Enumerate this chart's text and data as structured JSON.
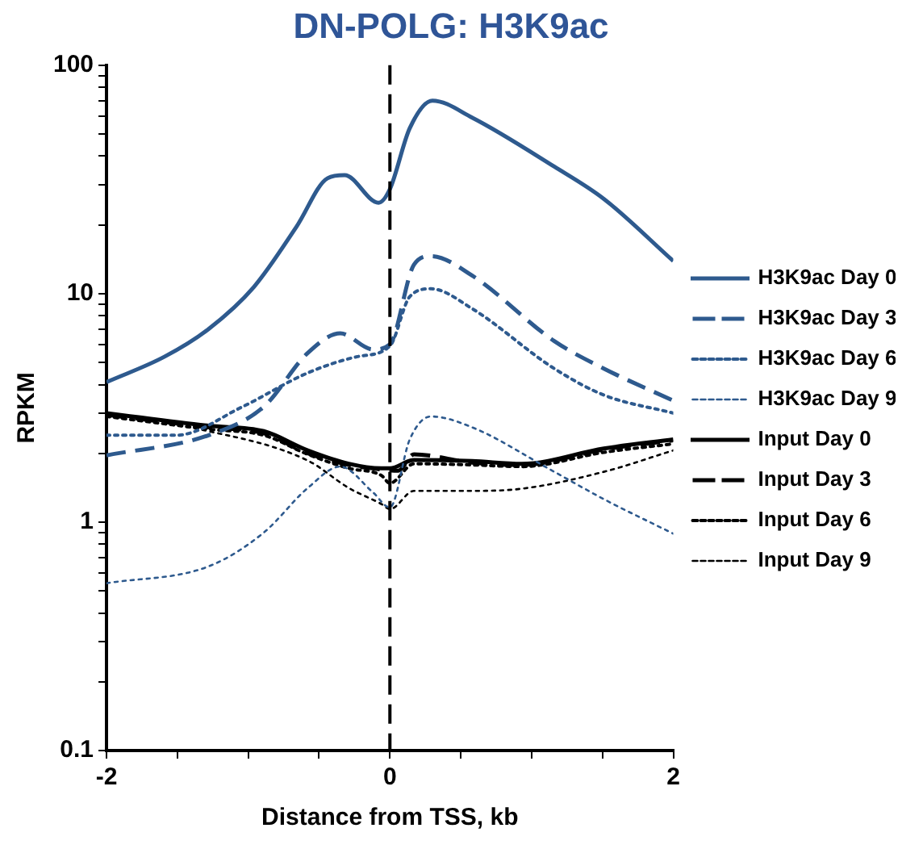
{
  "chart_data": {
    "type": "line",
    "title": "DN-POLG: H3K9ac",
    "xlabel": "Distance from TSS, kb",
    "ylabel": "RPKM",
    "log": "y",
    "grid": false,
    "legend": "right",
    "marker": "none",
    "xlim": [
      -2,
      2
    ],
    "xticks": [
      -2,
      {
        "value": -1.5,
        "label": null
      },
      {
        "value": -1,
        "label": null
      },
      {
        "value": -0.5,
        "label": null
      },
      0,
      {
        "value": 0.5,
        "label": null
      },
      {
        "value": 1,
        "label": null
      },
      {
        "value": 1.5,
        "label": null
      },
      2
    ],
    "ylim": [
      0.1,
      100
    ],
    "yticks": [
      0.1,
      {
        "value": 0.2,
        "label": null
      },
      {
        "value": 0.3,
        "label": null
      },
      {
        "value": 0.4,
        "label": null
      },
      {
        "value": 0.5,
        "label": null
      },
      {
        "value": 0.6,
        "label": null
      },
      {
        "value": 0.7,
        "label": null
      },
      {
        "value": 0.8,
        "label": null
      },
      {
        "value": 0.9,
        "label": null
      },
      1,
      {
        "value": 2,
        "label": null
      },
      {
        "value": 3,
        "label": null
      },
      {
        "value": 4,
        "label": null
      },
      {
        "value": 5,
        "label": null
      },
      {
        "value": 6,
        "label": null
      },
      {
        "value": 7,
        "label": null
      },
      {
        "value": 8,
        "label": null
      },
      {
        "value": 9,
        "label": null
      },
      10,
      {
        "value": 20,
        "label": null
      },
      {
        "value": 30,
        "label": null
      },
      {
        "value": 40,
        "label": null
      },
      {
        "value": 50,
        "label": null
      },
      {
        "value": 60,
        "label": null
      },
      {
        "value": 70,
        "label": null
      },
      {
        "value": 80,
        "label": null
      },
      {
        "value": 90,
        "label": null
      },
      100
    ],
    "ref_lines": [
      {
        "axis": "x",
        "value": 0,
        "color": "#000000",
        "line_style": "dashed"
      }
    ],
    "series": [
      {
        "name": "H3K9ac Day 0",
        "color": "#2e5a8e",
        "line_style": "solid",
        "x": [
          -2,
          -1.59,
          -1.28,
          -0.96,
          -0.66,
          -0.44,
          -0.32,
          -0.08,
          0,
          0.14,
          0.3,
          0.58,
          1.16,
          1.51,
          2
        ],
        "values": [
          4.1,
          5.3,
          7.0,
          10.7,
          19.6,
          32,
          33,
          25,
          28.7,
          53,
          70,
          59,
          36,
          26,
          13.9
        ]
      },
      {
        "name": "H3K9ac Day 3",
        "color": "#2e5a8e",
        "line_style": "dashed",
        "x": [
          -2,
          -1.28,
          -0.89,
          -0.58,
          -0.35,
          -0.12,
          0,
          0.17,
          0.29,
          0.58,
          1.16,
          1.51,
          2
        ],
        "values": [
          1.96,
          2.4,
          3.2,
          5.5,
          6.7,
          5.7,
          6.0,
          13.4,
          14.6,
          12,
          6.2,
          4.7,
          3.4
        ]
      },
      {
        "name": "H3K9ac Day 6",
        "color": "#2e5a8e",
        "line_style": "dotted",
        "x": [
          -2,
          -1.51,
          -1.04,
          -0.58,
          -0.23,
          0,
          0.14,
          0.29,
          0.58,
          1.16,
          1.51,
          2
        ],
        "values": [
          2.4,
          2.4,
          3.2,
          4.5,
          5.3,
          5.9,
          9.7,
          10.5,
          8.6,
          4.7,
          3.6,
          3.0
        ]
      },
      {
        "name": "H3K9ac Day 9",
        "color": "#2e5a8e",
        "line_style": "dotted",
        "x": [
          -2,
          -1.28,
          -0.89,
          -0.58,
          -0.35,
          -0.12,
          0,
          0.14,
          0.29,
          0.58,
          1.16,
          1.51,
          2
        ],
        "values": [
          0.54,
          0.64,
          0.9,
          1.41,
          1.75,
          1.35,
          1.16,
          2.3,
          2.9,
          2.6,
          1.66,
          1.26,
          0.89
        ]
      },
      {
        "name": "Input Day 0",
        "color": "#000000",
        "line_style": "solid",
        "x": [
          -2,
          -1.28,
          -0.89,
          -0.58,
          -0.29,
          -0.06,
          0,
          0.17,
          0.58,
          0.93,
          1.51,
          2
        ],
        "values": [
          3.0,
          2.64,
          2.5,
          2.06,
          1.8,
          1.72,
          1.72,
          1.87,
          1.85,
          1.8,
          2.1,
          2.3
        ]
      },
      {
        "name": "Input Day 3",
        "color": "#000000",
        "line_style": "dashed",
        "x": [
          -2,
          -1.28,
          -0.89,
          -0.58,
          -0.29,
          -0.06,
          0.06,
          0.17,
          0.58,
          0.93,
          1.51,
          2
        ],
        "values": [
          2.95,
          2.6,
          2.45,
          2.0,
          1.78,
          1.7,
          1.68,
          1.98,
          1.82,
          1.78,
          2.08,
          2.28
        ]
      },
      {
        "name": "Input Day 6",
        "color": "#000000",
        "line_style": "dotted",
        "x": [
          -2,
          -1.28,
          -0.89,
          -0.58,
          -0.29,
          -0.06,
          0,
          0.17,
          0.58,
          0.93,
          1.51,
          2
        ],
        "values": [
          2.9,
          2.55,
          2.4,
          1.98,
          1.72,
          1.6,
          1.48,
          1.8,
          1.78,
          1.75,
          2.02,
          2.2
        ]
      },
      {
        "name": "Input Day 9",
        "color": "#000000",
        "line_style": "dotted",
        "x": [
          -2,
          -1.28,
          -0.58,
          -0.29,
          -0.06,
          0,
          0.17,
          0.58,
          0.93,
          1.51,
          2
        ],
        "values": [
          2.9,
          2.5,
          1.86,
          1.41,
          1.2,
          1.14,
          1.37,
          1.37,
          1.4,
          1.66,
          2.06
        ]
      }
    ]
  }
}
